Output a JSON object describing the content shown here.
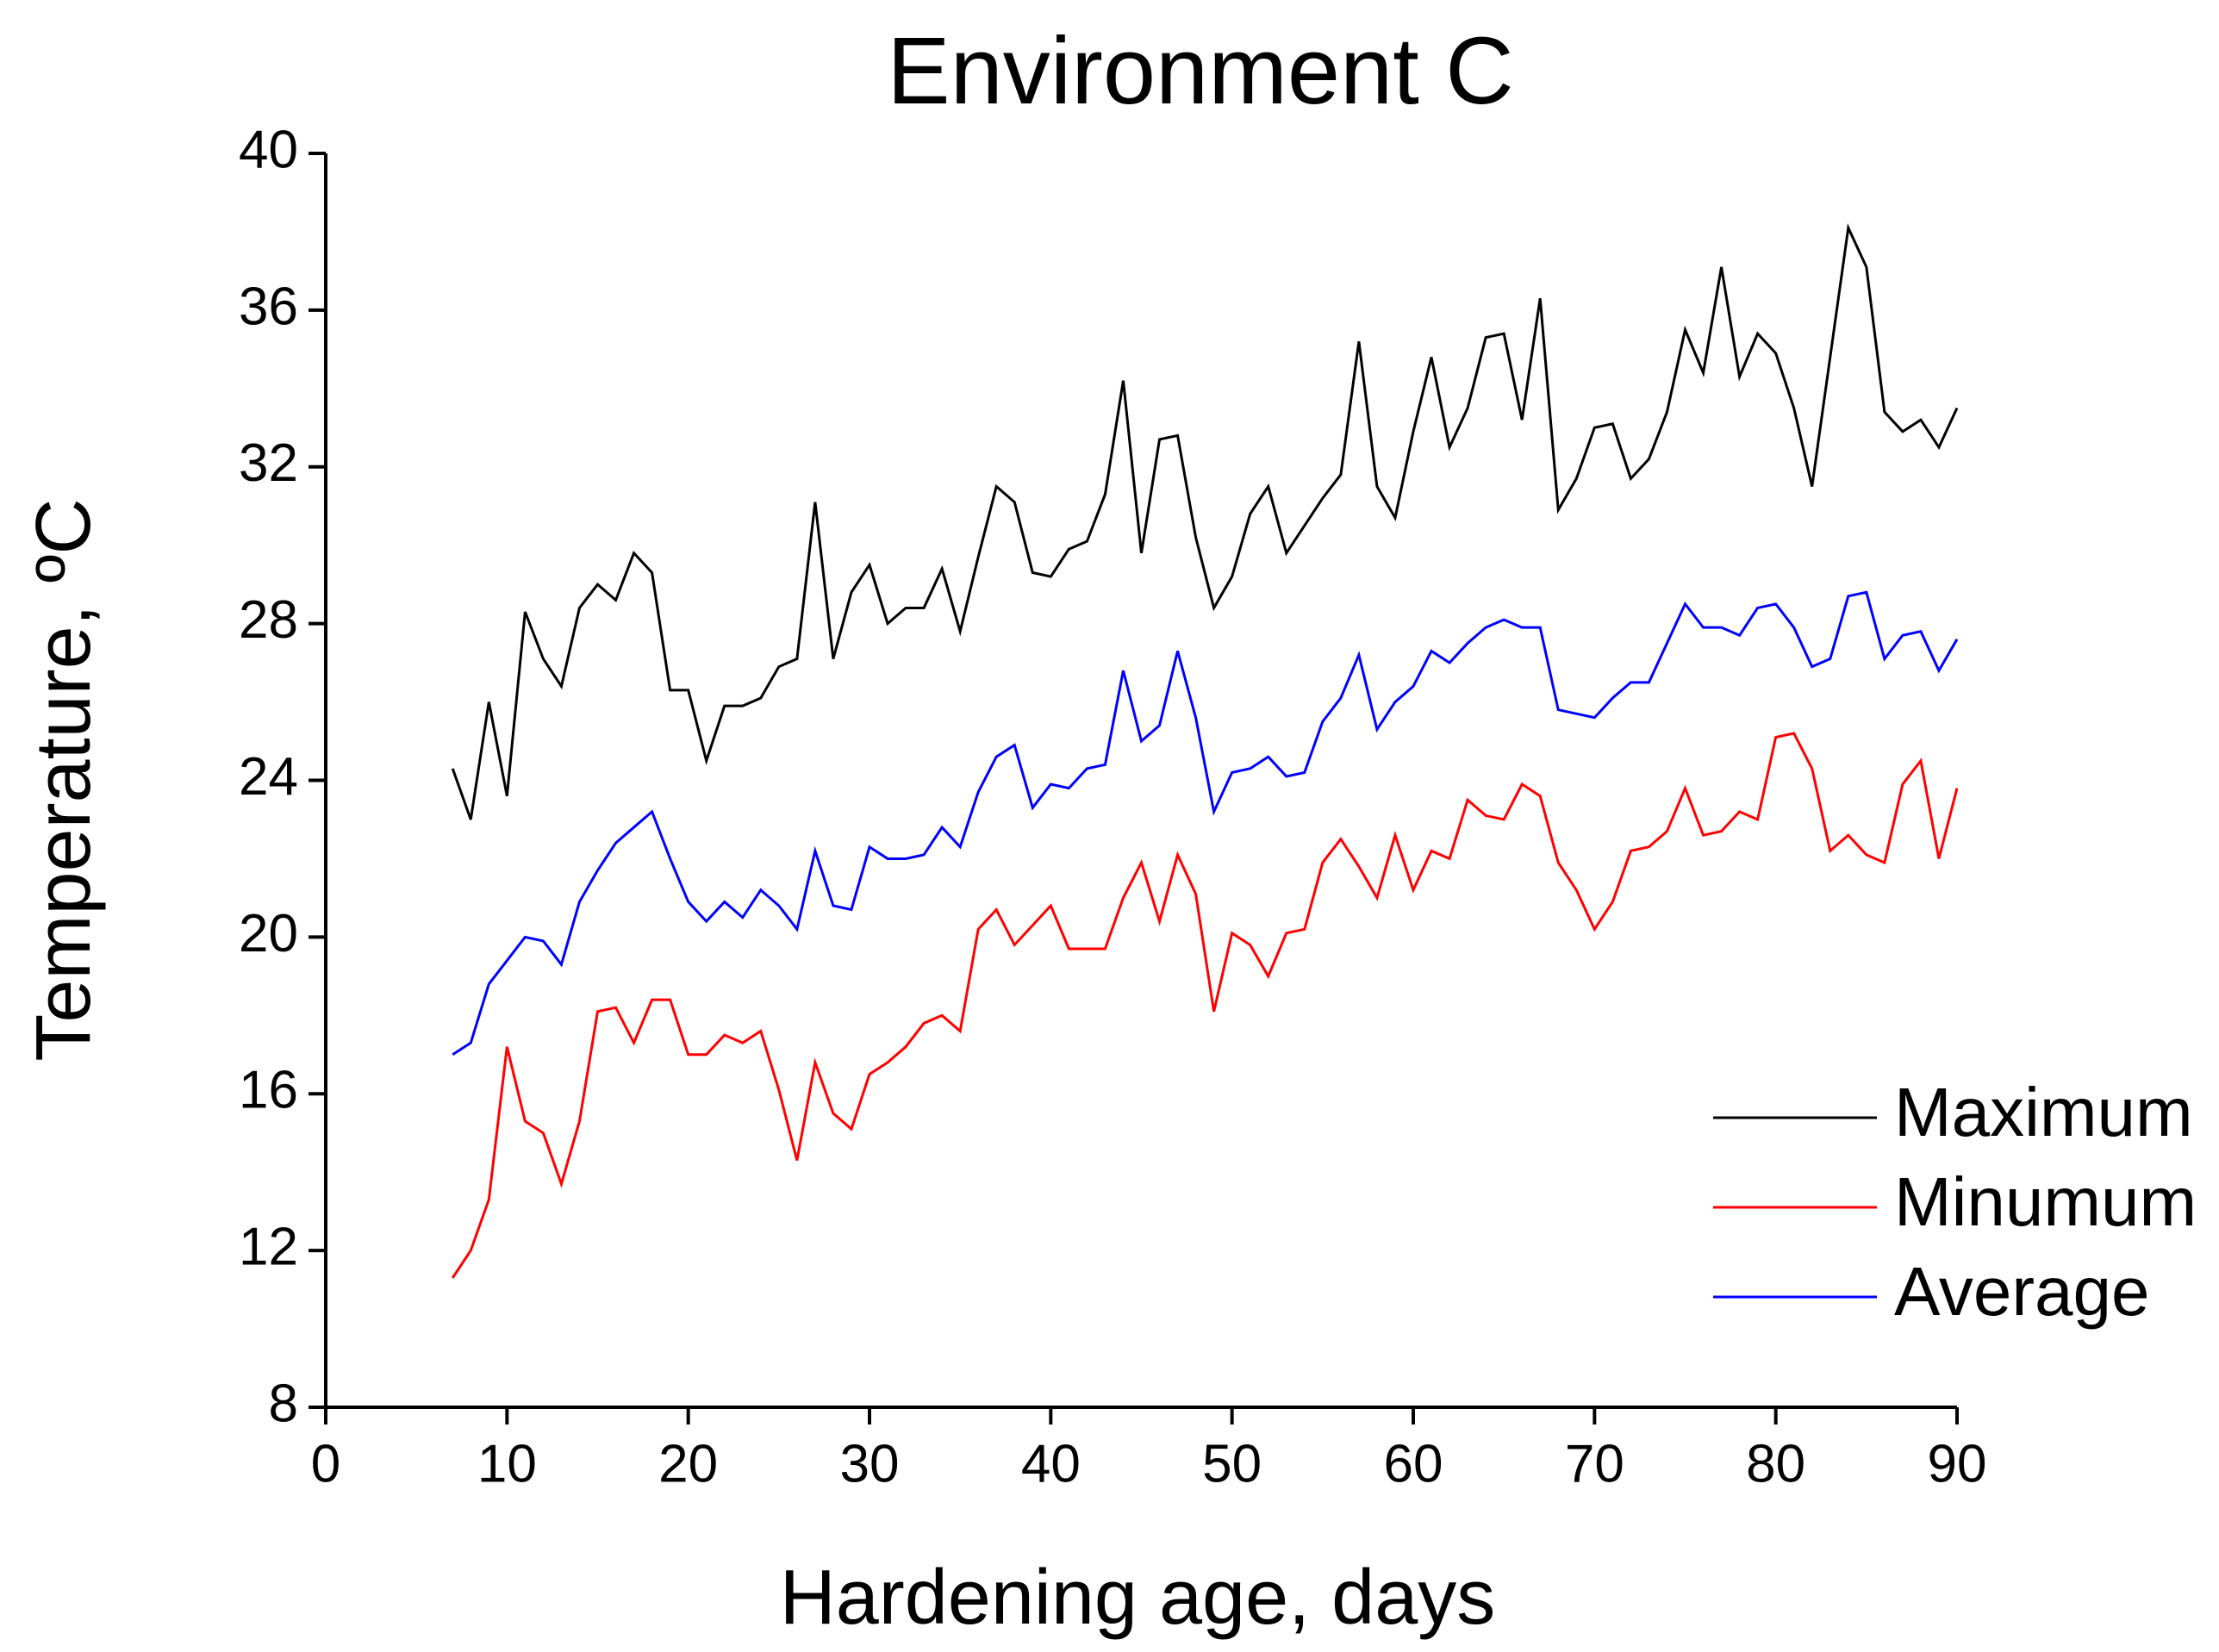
{
  "chart_data": {
    "type": "line",
    "title": "Environment C",
    "x_label": "Hardening age, days",
    "y_label": "Temperature, ºC",
    "x": [
      7,
      8,
      9,
      10,
      11,
      12,
      13,
      14,
      15,
      16,
      17,
      18,
      19,
      20,
      21,
      22,
      23,
      24,
      25,
      26,
      27,
      28,
      29,
      30,
      31,
      32,
      33,
      34,
      35,
      36,
      37,
      38,
      39,
      40,
      41,
      42,
      43,
      44,
      45,
      46,
      47,
      48,
      49,
      50,
      51,
      52,
      53,
      54,
      55,
      56,
      57,
      58,
      59,
      60,
      61,
      62,
      63,
      64,
      65,
      66,
      67,
      68,
      69,
      70,
      71,
      72,
      73,
      74,
      75,
      76,
      77,
      78,
      79,
      80,
      81,
      82,
      83,
      84,
      85,
      86,
      87,
      88,
      89,
      90
    ],
    "series": [
      {
        "name": "Maximum",
        "color": "#000000",
        "values": [
          24.3,
          23.0,
          26.0,
          23.6,
          28.3,
          27.1,
          26.4,
          28.4,
          29.0,
          28.6,
          29.8,
          29.3,
          26.3,
          26.3,
          24.5,
          25.9,
          25.9,
          26.1,
          26.9,
          27.1,
          31.1,
          27.1,
          28.8,
          29.5,
          28.0,
          28.4,
          28.4,
          29.4,
          27.8,
          29.7,
          31.5,
          31.1,
          29.3,
          29.2,
          29.9,
          30.1,
          31.3,
          34.2,
          29.8,
          32.7,
          32.8,
          30.2,
          28.4,
          29.2,
          30.8,
          31.5,
          29.8,
          30.5,
          31.2,
          31.8,
          35.2,
          31.5,
          30.7,
          32.9,
          34.8,
          32.5,
          33.5,
          35.3,
          35.4,
          33.2,
          36.3,
          30.9,
          31.7,
          33.0,
          33.1,
          31.7,
          32.2,
          33.4,
          35.5,
          34.4,
          37.1,
          34.3,
          35.4,
          34.9,
          33.5,
          31.5,
          34.8,
          38.1,
          37.1,
          33.4,
          32.9,
          33.2,
          32.5,
          33.5
        ]
      },
      {
        "name": "Minumum",
        "color": "#ff0000",
        "values": [
          11.3,
          12.0,
          13.3,
          17.2,
          15.3,
          15.0,
          13.7,
          15.3,
          18.1,
          18.2,
          17.3,
          18.4,
          18.4,
          17.0,
          17.0,
          17.5,
          17.3,
          17.6,
          16.1,
          14.3,
          16.8,
          15.5,
          15.1,
          16.5,
          16.8,
          17.2,
          17.8,
          18.0,
          17.6,
          20.2,
          20.7,
          19.8,
          20.3,
          20.8,
          19.7,
          19.7,
          19.7,
          21.0,
          21.9,
          20.4,
          22.1,
          21.1,
          18.1,
          20.1,
          19.8,
          19.0,
          20.1,
          20.2,
          21.9,
          22.5,
          21.8,
          21.0,
          22.6,
          21.2,
          22.2,
          22.0,
          23.5,
          23.1,
          23.0,
          23.9,
          23.6,
          21.9,
          21.2,
          20.2,
          20.9,
          22.2,
          22.3,
          22.7,
          23.8,
          22.6,
          22.7,
          23.2,
          23.0,
          25.1,
          25.2,
          24.3,
          22.2,
          22.6,
          22.1,
          21.9,
          23.9,
          24.5,
          22.0,
          23.8
        ]
      },
      {
        "name": "Average",
        "color": "#0000ff",
        "values": [
          17.0,
          17.3,
          18.8,
          19.4,
          20.0,
          19.9,
          19.3,
          20.9,
          21.7,
          22.4,
          22.8,
          23.2,
          22.0,
          20.9,
          20.4,
          20.9,
          20.5,
          21.2,
          20.8,
          20.2,
          22.2,
          20.8,
          20.7,
          22.3,
          22.0,
          22.0,
          22.1,
          22.8,
          22.3,
          23.7,
          24.6,
          24.9,
          23.3,
          23.9,
          23.8,
          24.3,
          24.4,
          26.8,
          25.0,
          25.4,
          27.3,
          25.6,
          23.2,
          24.2,
          24.3,
          24.6,
          24.1,
          24.2,
          25.5,
          26.1,
          27.2,
          25.3,
          26.0,
          26.4,
          27.3,
          27.0,
          27.5,
          27.9,
          28.1,
          27.9,
          27.9,
          25.8,
          25.7,
          25.6,
          26.1,
          26.5,
          26.5,
          27.5,
          28.5,
          27.9,
          27.9,
          27.7,
          28.4,
          28.5,
          27.9,
          26.9,
          27.1,
          28.7,
          28.8,
          27.1,
          27.7,
          27.8,
          26.8,
          27.6
        ]
      }
    ],
    "xlim": [
      0,
      90
    ],
    "xticks": [
      0,
      10,
      20,
      30,
      40,
      50,
      60,
      70,
      80,
      90
    ],
    "ylim": [
      8,
      40
    ],
    "yticks": [
      8,
      12,
      16,
      20,
      24,
      28,
      32,
      36,
      40
    ],
    "legend": "lower right",
    "grid": false
  }
}
